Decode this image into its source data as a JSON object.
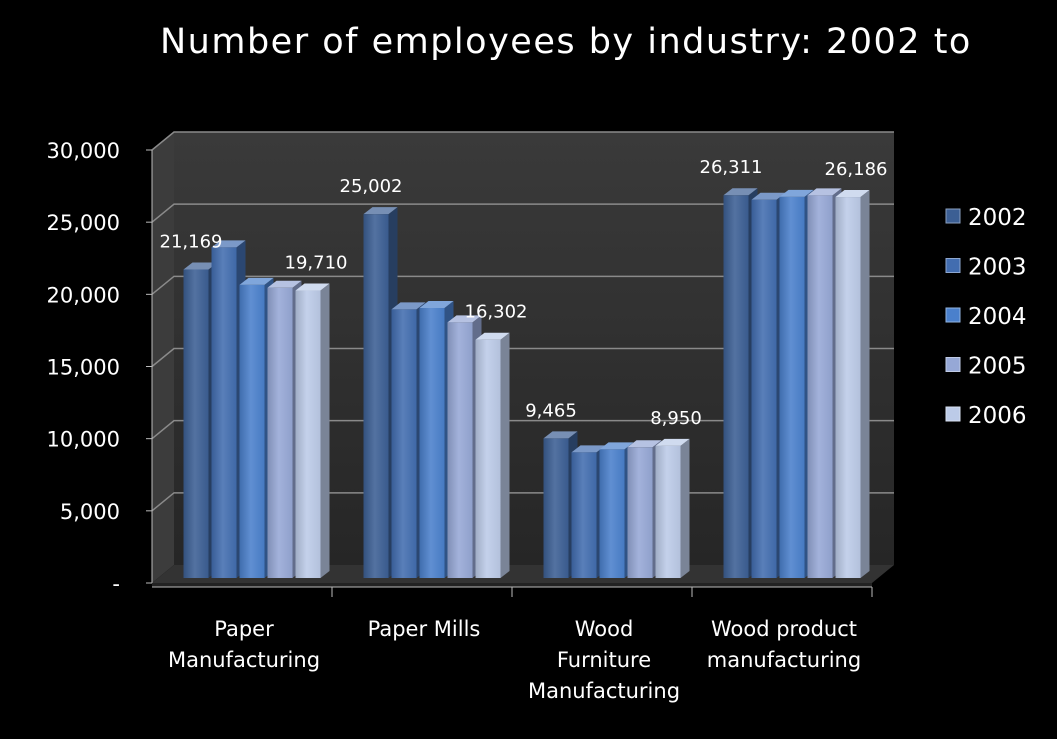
{
  "chart_data": {
    "type": "bar",
    "title": "Number of employees by industry: 2002 to",
    "categories": [
      [
        "Paper",
        "Manufacturing"
      ],
      [
        "Paper Mills"
      ],
      [
        "Wood",
        "Furniture",
        "Manufacturing"
      ],
      [
        "Wood product",
        "manufacturing"
      ]
    ],
    "series": [
      {
        "name": "2002",
        "color": "#3c5f94",
        "values": [
          21169,
          25002,
          9465,
          26311
        ]
      },
      {
        "name": "2003",
        "color": "#426db0",
        "values": [
          22700,
          18400,
          8500,
          26000
        ]
      },
      {
        "name": "2004",
        "color": "#4a80cc",
        "values": [
          20100,
          18500,
          8700,
          26200
        ]
      },
      {
        "name": "2005",
        "color": "#96a8d6",
        "values": [
          19900,
          17500,
          8850,
          26300
        ]
      },
      {
        "name": "2006",
        "color": "#bccbe8",
        "values": [
          19710,
          16302,
          8950,
          26186
        ]
      }
    ],
    "data_labels": [
      {
        "series": 0,
        "category": 0,
        "text": "21,169"
      },
      {
        "series": 4,
        "category": 0,
        "text": "19,710"
      },
      {
        "series": 0,
        "category": 1,
        "text": "25,002"
      },
      {
        "series": 4,
        "category": 1,
        "text": "16,302"
      },
      {
        "series": 0,
        "category": 2,
        "text": "9,465"
      },
      {
        "series": 4,
        "category": 2,
        "text": "8,950"
      },
      {
        "series": 0,
        "category": 3,
        "text": "26,311"
      },
      {
        "series": 4,
        "category": 3,
        "text": "26,186"
      }
    ],
    "y_ticks": [
      0,
      5000,
      10000,
      15000,
      20000,
      25000,
      30000
    ],
    "y_tick_labels": [
      "-",
      "5,000",
      "10,000",
      "15,000",
      "20,000",
      "25,000",
      "30,000"
    ],
    "ylim": [
      0,
      30000
    ],
    "legend_position": "right",
    "grid": true,
    "three_d": true,
    "background": "#000000",
    "wall_color": "#2e2e2e",
    "text_color": "#ffffff"
  }
}
